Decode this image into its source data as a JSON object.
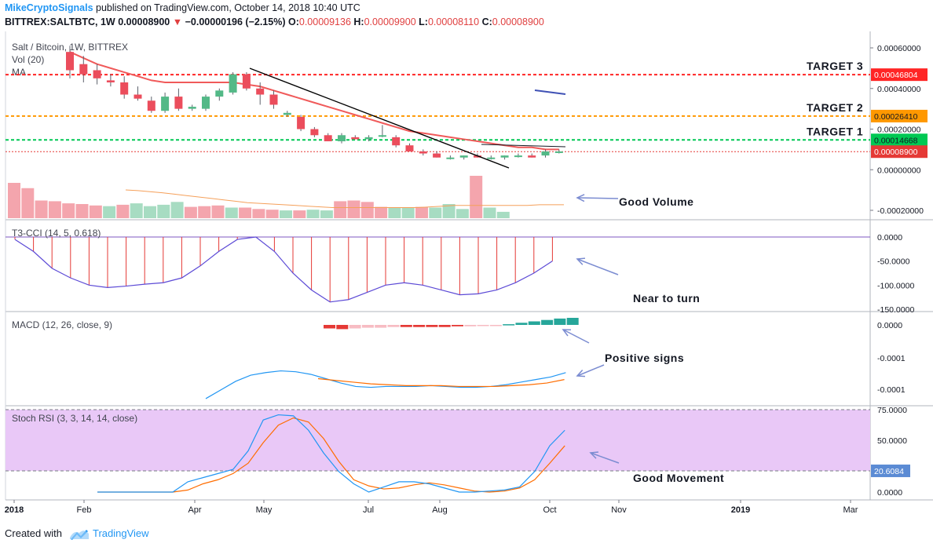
{
  "header": {
    "author": "MikeCryptoSignals",
    "published": "published on TradingView.com, October 14, 2018 10:40 UTC",
    "symbol": "BITTREX:SALTBTC, 1W",
    "price": "0.00008900",
    "arrow": "▼",
    "change": "−0.00000196 (−2.15%)",
    "o_label": "O:",
    "o_value": "0.00009136",
    "h_label": "H:",
    "h_value": "0.00009900",
    "l_label": "L:",
    "l_value": "0.00008110",
    "c_label": "C:",
    "c_value": "0.00008900"
  },
  "footer": {
    "created": "Created with",
    "brand": "TradingView"
  },
  "chart_data": {
    "type": "candlestick",
    "colors": {
      "up": "#53b987",
      "down": "#eb4d5c",
      "ma": "#f05a5a",
      "trend": "#000000"
    },
    "main_legend": [
      "Salt / Bitcoin, 1W, BITTREX",
      "Vol (20)",
      "MA"
    ],
    "y_ticks": [
      "0.00060000",
      "0.00040000",
      "0.00020000",
      "0.00000000",
      "-0.00020000"
    ],
    "x_ticks": [
      "2018",
      "Feb",
      "Apr",
      "May",
      "Jul",
      "Aug",
      "Oct",
      "Nov",
      "2019",
      "Mar"
    ],
    "levels": [
      {
        "name": "TARGET 3",
        "value": "0.00046804",
        "color": "#ff2525"
      },
      {
        "name": "TARGET 2",
        "value": "0.00026410",
        "color": "#ff9800"
      },
      {
        "name": "TARGET 1",
        "value": "0.00014668",
        "color": "#00c853"
      },
      {
        "name": "",
        "value": "0.00008900",
        "color": "#e53935"
      }
    ],
    "candles": [
      {
        "o": 0.00058,
        "h": 0.00061,
        "l": 0.00045,
        "c": 0.00049
      },
      {
        "o": 0.00052,
        "h": 0.00056,
        "l": 0.00043,
        "c": 0.00047
      },
      {
        "o": 0.00049,
        "h": 0.00052,
        "l": 0.00042,
        "c": 0.00045
      },
      {
        "o": 0.00044,
        "h": 0.00047,
        "l": 0.00041,
        "c": 0.00043
      },
      {
        "o": 0.00043,
        "h": 0.00046,
        "l": 0.00035,
        "c": 0.00037
      },
      {
        "o": 0.00037,
        "h": 0.00041,
        "l": 0.00034,
        "c": 0.00035
      },
      {
        "o": 0.00034,
        "h": 0.00036,
        "l": 0.00028,
        "c": 0.00029
      },
      {
        "o": 0.00029,
        "h": 0.00038,
        "l": 0.00028,
        "c": 0.00036
      },
      {
        "o": 0.00036,
        "h": 0.0004,
        "l": 0.00029,
        "c": 0.0003
      },
      {
        "o": 0.0003,
        "h": 0.00032,
        "l": 0.00029,
        "c": 0.00031
      },
      {
        "o": 0.0003,
        "h": 0.00037,
        "l": 0.00029,
        "c": 0.00036
      },
      {
        "o": 0.00036,
        "h": 0.0004,
        "l": 0.00034,
        "c": 0.00039
      },
      {
        "o": 0.00038,
        "h": 0.00048,
        "l": 0.00037,
        "c": 0.00047
      },
      {
        "o": 0.00047,
        "h": 0.00048,
        "l": 0.00039,
        "c": 0.0004
      },
      {
        "o": 0.0004,
        "h": 0.00043,
        "l": 0.00032,
        "c": 0.00037
      },
      {
        "o": 0.00037,
        "h": 0.00039,
        "l": 0.0003,
        "c": 0.00032
      },
      {
        "o": 0.00027,
        "h": 0.00029,
        "l": 0.00026,
        "c": 0.00028
      },
      {
        "o": 0.00026,
        "h": 0.00027,
        "l": 0.00019,
        "c": 0.0002
      },
      {
        "o": 0.0002,
        "h": 0.00021,
        "l": 0.00016,
        "c": 0.00017
      },
      {
        "o": 0.00017,
        "h": 0.00018,
        "l": 0.00014,
        "c": 0.00014
      },
      {
        "o": 0.00014,
        "h": 0.00018,
        "l": 0.00013,
        "c": 0.00017
      },
      {
        "o": 0.00016,
        "h": 0.00017,
        "l": 0.00015,
        "c": 0.00015
      },
      {
        "o": 0.00015,
        "h": 0.00017,
        "l": 0.00014,
        "c": 0.00016
      },
      {
        "o": 0.00017,
        "h": 0.00022,
        "l": 0.00016,
        "c": 0.00017
      },
      {
        "o": 0.00016,
        "h": 0.00017,
        "l": 0.00011,
        "c": 0.00012
      },
      {
        "o": 0.00012,
        "h": 0.00013,
        "l": 9e-05,
        "c": 9e-05
      },
      {
        "o": 9e-05,
        "h": 0.0001,
        "l": 7e-05,
        "c": 8e-05
      },
      {
        "o": 8e-05,
        "h": 9e-05,
        "l": 6e-05,
        "c": 6e-05
      },
      {
        "o": 6e-05,
        "h": 7e-05,
        "l": 5e-05,
        "c": 6e-05
      },
      {
        "o": 6e-05,
        "h": 7e-05,
        "l": 5e-05,
        "c": 7e-05
      },
      {
        "o": 7e-05,
        "h": 8e-05,
        "l": 6e-05,
        "c": 6e-05
      },
      {
        "o": 6e-05,
        "h": 7e-05,
        "l": 5e-05,
        "c": 6e-05
      },
      {
        "o": 6e-05,
        "h": 7e-05,
        "l": 5e-05,
        "c": 7e-05
      },
      {
        "o": 7e-05,
        "h": 8e-05,
        "l": 6e-05,
        "c": 7e-05
      },
      {
        "o": 7e-05,
        "h": 8e-05,
        "l": 6e-05,
        "c": 6e-05
      },
      {
        "o": 7e-05,
        "h": 0.0001,
        "l": 6e-05,
        "c": 9e-05
      },
      {
        "o": 9e-05,
        "h": 0.0001,
        "l": 8e-05,
        "c": 9e-05
      }
    ],
    "ma": [
      0.00058,
      0.00055,
      0.00052,
      0.0005,
      0.00048,
      0.00046,
      0.00044,
      0.00043,
      0.00043,
      0.00043,
      0.00043,
      0.00043,
      0.00043,
      0.00042,
      0.00041,
      0.00039,
      0.00037,
      0.00035,
      0.00033,
      0.00031,
      0.00029,
      0.00027,
      0.00025,
      0.00023,
      0.00021,
      0.00019,
      0.00018,
      0.00017,
      0.00016,
      0.00015,
      0.00014,
      0.00013,
      0.00012,
      0.00011,
      0.00011,
      0.0001,
      0.0001
    ],
    "volume": [
      100,
      85,
      50,
      48,
      42,
      40,
      36,
      34,
      38,
      42,
      34,
      38,
      46,
      32,
      34,
      36,
      30,
      30,
      26,
      24,
      22,
      22,
      24,
      22,
      48,
      50,
      46,
      32,
      30,
      30,
      32,
      30,
      40,
      26,
      120,
      30,
      18
    ],
    "vol_ma": [
      80,
      78,
      75,
      72,
      68,
      64,
      60,
      56,
      52,
      48,
      44,
      42,
      40,
      38,
      36,
      34,
      32,
      30,
      30,
      30,
      30,
      30,
      30,
      30,
      30,
      32,
      34,
      36,
      36,
      36,
      36,
      36,
      36,
      36,
      38,
      38,
      38
    ],
    "cci": {
      "legend": "T3-CCI (14, 5, 0.618)",
      "y_ticks": [
        "0.0000",
        "-50.0000",
        "-100.0000",
        "-150.0000"
      ],
      "values": [
        -5,
        -30,
        -65,
        -85,
        -100,
        -105,
        -102,
        -98,
        -95,
        -85,
        -60,
        -30,
        -5,
        0,
        -30,
        -75,
        -110,
        -135,
        -130,
        -115,
        -100,
        -95,
        -100,
        -110,
        -120,
        -118,
        -110,
        -95,
        -75,
        -50
      ]
    },
    "macd": {
      "legend": "MACD (12, 26, close, 9)",
      "y_ticks": [
        "0.0000",
        "-0.0001",
        "-0.0001"
      ],
      "hist": [
        -5e-06,
        -6e-06,
        -5e-06,
        -4e-06,
        -4e-06,
        -3e-06,
        -3e-06,
        -3e-06,
        -3e-06,
        -3e-06,
        -2e-06,
        -2e-06,
        -1e-06,
        -1e-06,
        1e-06,
        3e-06,
        5e-06,
        7e-06,
        9e-06,
        1e-05
      ],
      "macd": [
        -8.5e-05,
        -7.5e-05,
        -6.5e-05,
        -5.8e-05,
        -5.5e-05,
        -5.3e-05,
        -5.4e-05,
        -5.7e-05,
        -6.2e-05,
        -6.7e-05,
        -7.1e-05,
        -7.2e-05,
        -7.1e-05,
        -7.1e-05,
        -7.1e-05,
        -7e-05,
        -7.1e-05,
        -7.2e-05,
        -7.2e-05,
        -7.1e-05,
        -6.9e-05,
        -6.6e-05,
        -6.3e-05,
        -6e-05,
        -5.5e-05
      ],
      "signal": [
        -6.2e-05,
        -6.4e-05,
        -6.6e-05,
        -6.8e-05,
        -6.9e-05,
        -7e-05,
        -7e-05,
        -7e-05,
        -7.1e-05,
        -7.1e-05,
        -7.1e-05,
        -7e-05,
        -6.9e-05,
        -6.7e-05,
        -6.3e-05
      ]
    },
    "stoch": {
      "legend": "Stoch RSI (3, 3, 14, 14, close)",
      "y_ticks": [
        "75.0000",
        "50.0000",
        "0.0000"
      ],
      "level_label": "20.6084",
      "k": [
        0,
        0,
        0,
        0,
        0,
        0,
        10,
        14,
        18,
        22,
        40,
        70,
        75,
        74,
        60,
        38,
        20,
        8,
        0,
        5,
        10,
        10,
        8,
        4,
        0,
        0,
        1,
        2,
        5,
        20,
        45,
        60
      ],
      "d": [
        0,
        0,
        0,
        0,
        0,
        0,
        2,
        8,
        12,
        18,
        28,
        48,
        65,
        72,
        68,
        52,
        30,
        12,
        6,
        3,
        4,
        7,
        9,
        7,
        4,
        1,
        0,
        1,
        4,
        12,
        28,
        45
      ]
    },
    "annotations": [
      "Good Volume",
      "Near to turn",
      "Positive signs",
      "Good Movement"
    ]
  }
}
